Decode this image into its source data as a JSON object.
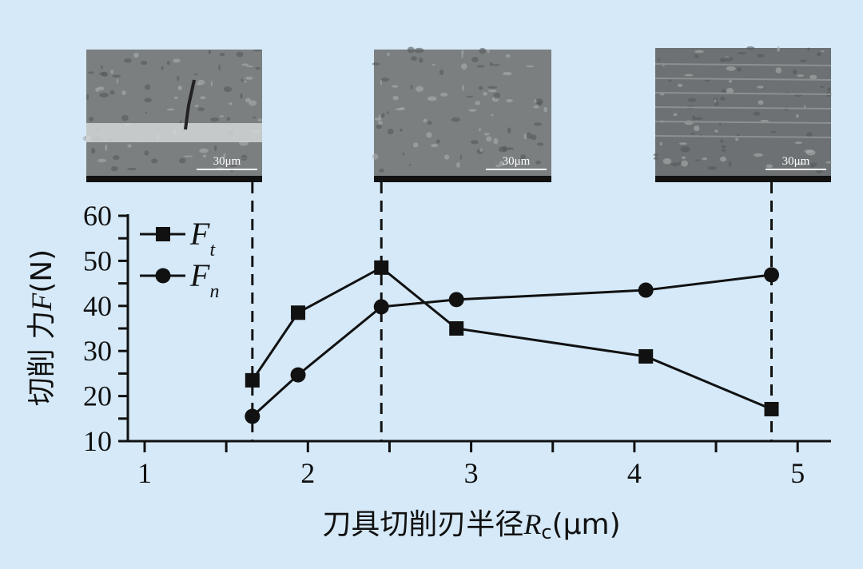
{
  "chart_data": {
    "type": "line",
    "title": "",
    "xlabel": {
      "prefix": "刀具切削刃半径",
      "symbol": "R",
      "subscript": "c",
      "unit": "(μm)"
    },
    "ylabel": {
      "prefix": "切削 力",
      "symbol": "F",
      "unit": "(N)"
    },
    "xlim": [
      0.9,
      5.2
    ],
    "ylim": [
      10,
      60
    ],
    "xticks": [
      "1",
      "2",
      "3",
      "4",
      "5"
    ],
    "yticks": [
      "10",
      "20",
      "30",
      "40",
      "50",
      "60"
    ],
    "grid": false,
    "legend_placement": "top-left",
    "series": [
      {
        "name": "F",
        "subscript": "t",
        "marker": "square",
        "x": [
          1.66,
          1.94,
          2.45,
          2.91,
          4.07,
          4.84
        ],
        "y": [
          23.5,
          38.5,
          48.5,
          35.0,
          28.8,
          17.1
        ]
      },
      {
        "name": "F",
        "subscript": "n",
        "marker": "circle",
        "x": [
          1.66,
          1.94,
          2.45,
          2.91,
          4.07,
          4.84
        ],
        "y": [
          15.5,
          24.7,
          39.8,
          41.4,
          43.5,
          46.9
        ]
      }
    ],
    "reference_lines_x": [
      1.66,
      2.45,
      4.84
    ],
    "insets": [
      {
        "scale_label": "30μm",
        "x": 1.66
      },
      {
        "scale_label": "30μm",
        "x": 2.45
      },
      {
        "scale_label": "30μm",
        "x": 4.84
      }
    ],
    "colors": {
      "background": "#d5e9f8",
      "ink": "#111111",
      "sem_gray": "#7b7f80"
    }
  }
}
